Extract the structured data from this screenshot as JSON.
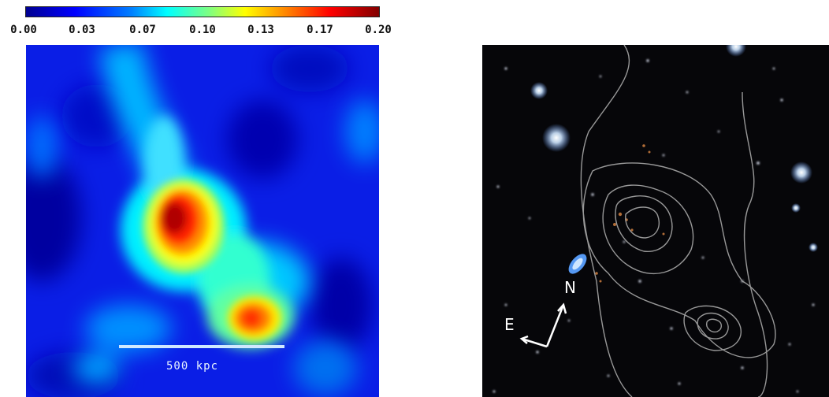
{
  "colorbar": {
    "tick_labels": [
      "0.00",
      "0.03",
      "0.07",
      "0.10",
      "0.13",
      "0.17",
      "0.20"
    ]
  },
  "left_panel": {
    "scale_label": "500 kpc"
  },
  "right_panel": {
    "compass_north": "N",
    "compass_east": "E"
  }
}
